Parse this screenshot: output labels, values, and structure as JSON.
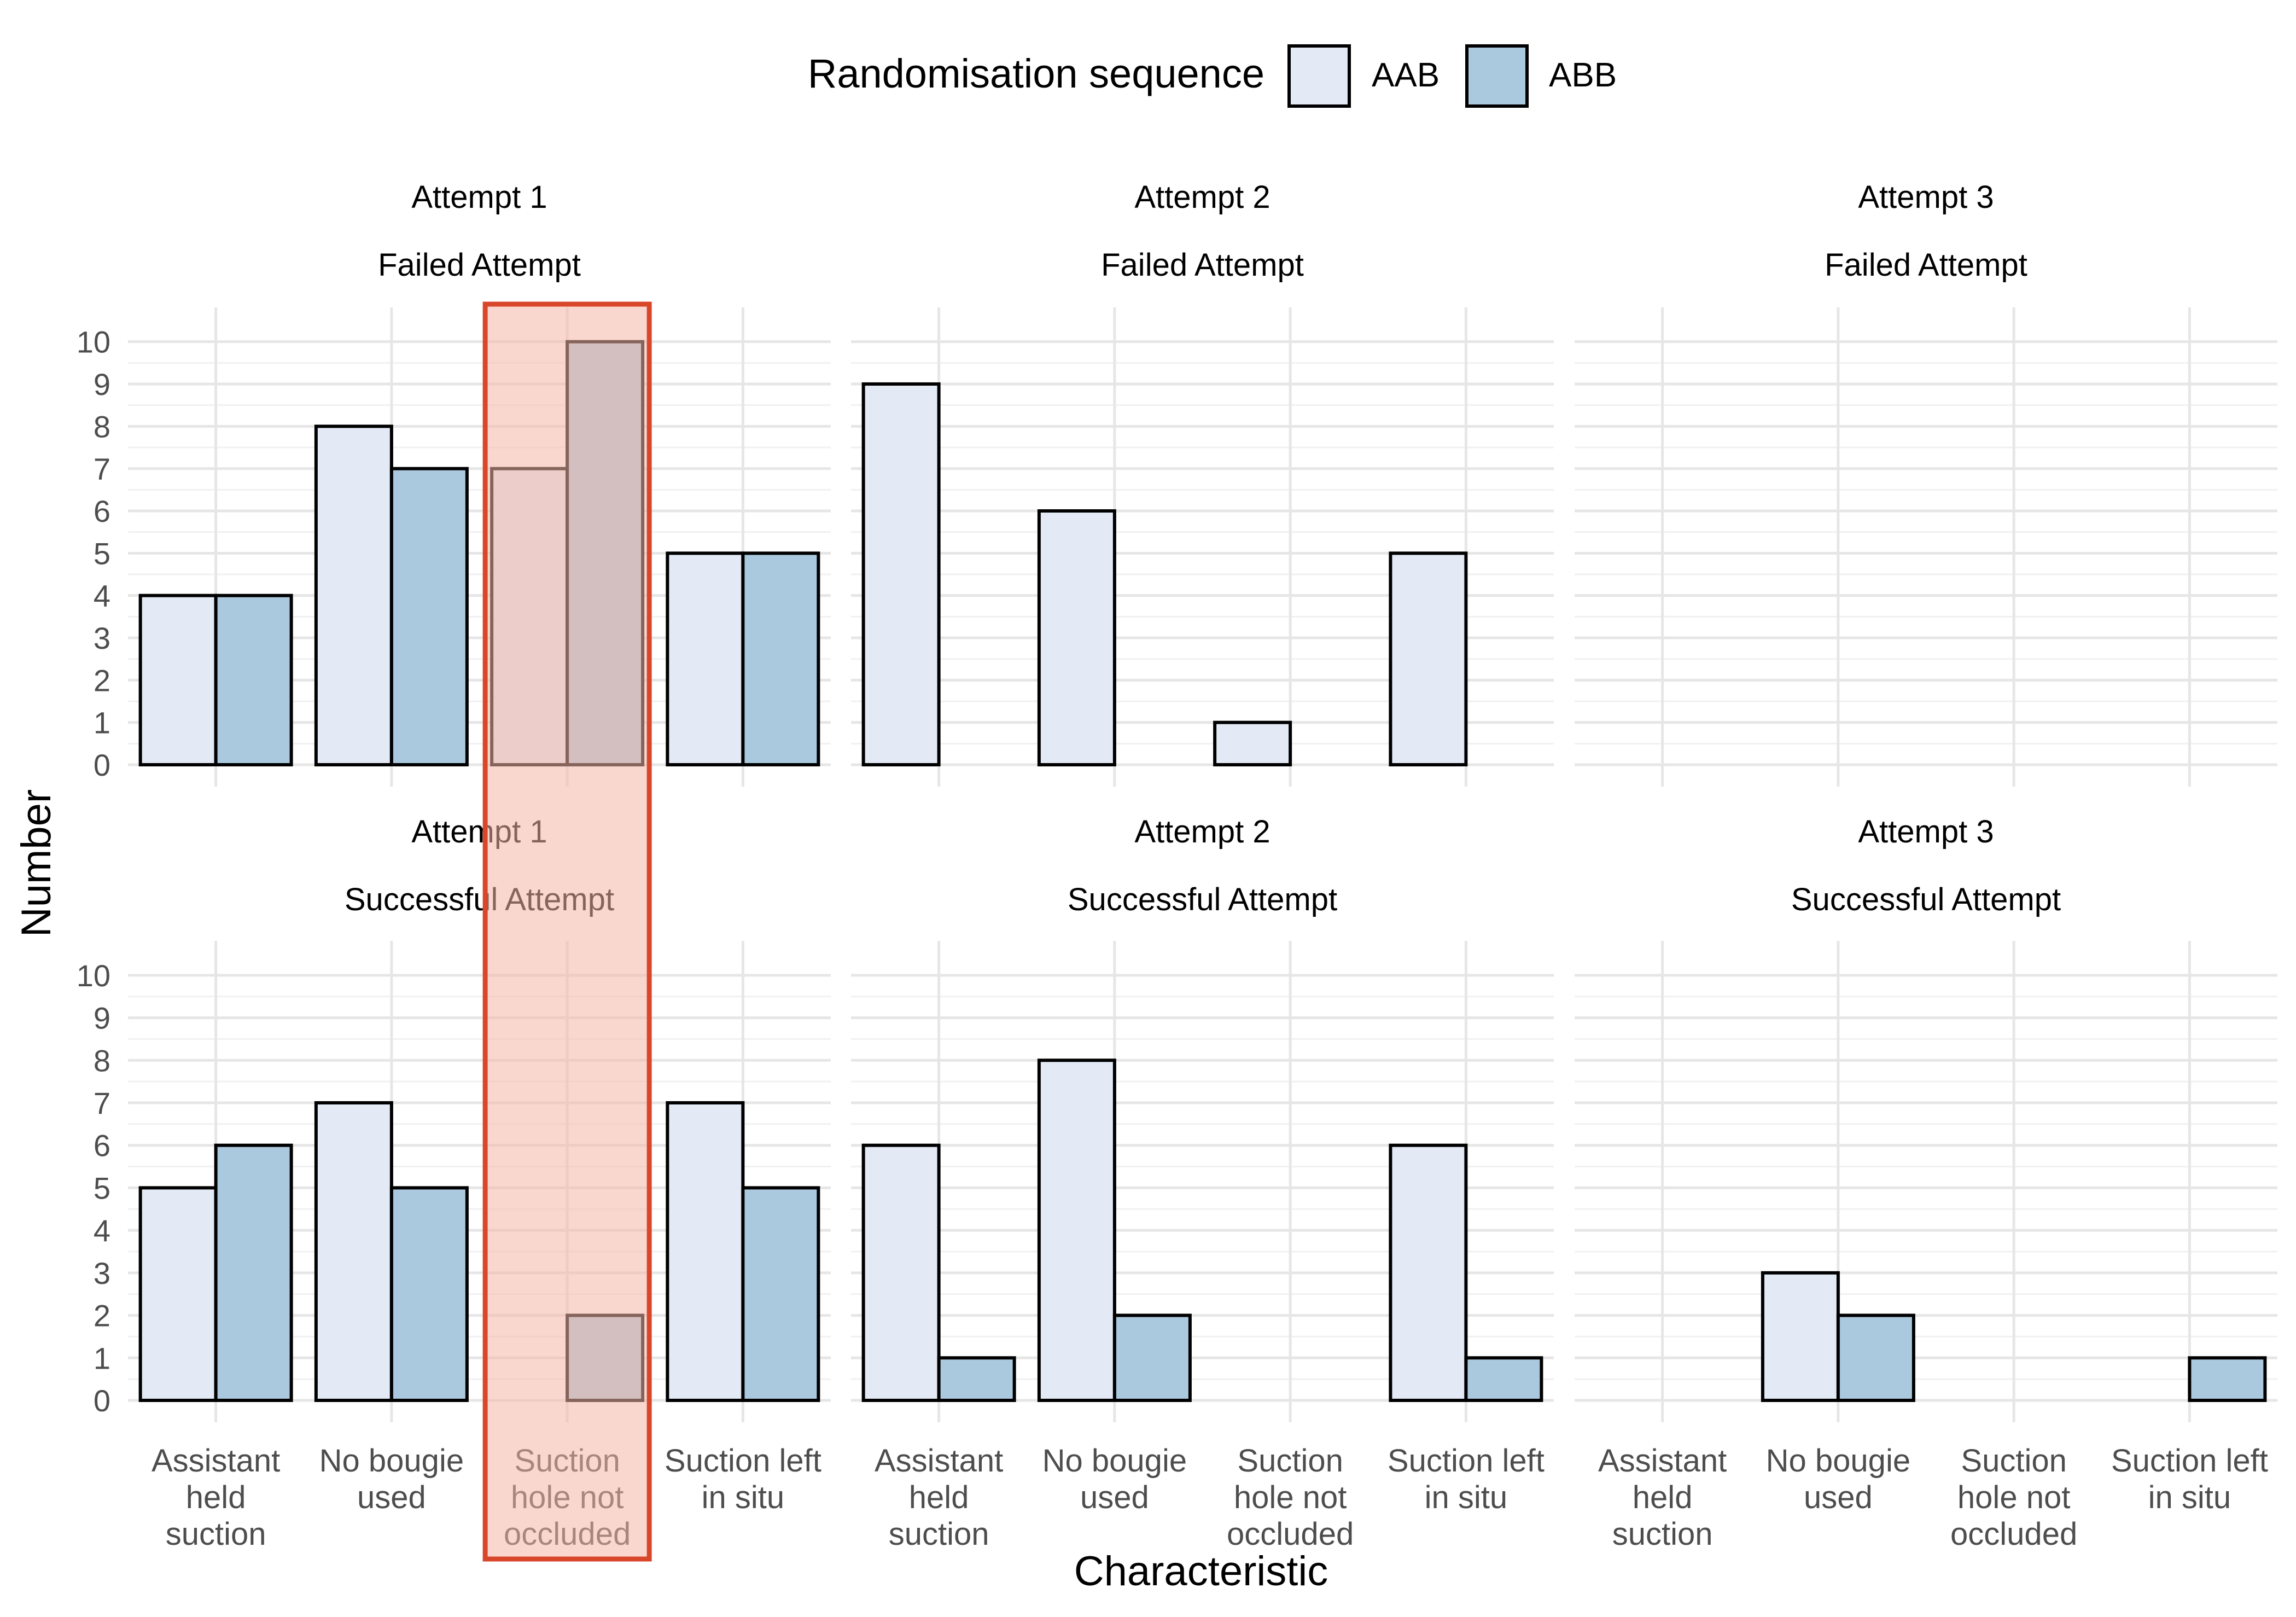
{
  "legend": {
    "title": "Randomisation sequence",
    "entries": [
      {
        "label": "AAB",
        "color": "#e3e9f5"
      },
      {
        "label": "ABB",
        "color": "#abc9de"
      }
    ]
  },
  "axes": {
    "xlabel": "Characteristic",
    "ylabel": "Number"
  },
  "highlight": {
    "category_index": 2,
    "fill": "#f4b6a6",
    "stroke": "#d9472b"
  },
  "chart_data": {
    "type": "bar",
    "ylim": [
      0,
      10.5
    ],
    "yticks": [
      "0",
      "1",
      "2",
      "3",
      "4",
      "5",
      "6",
      "7",
      "8",
      "9",
      "10"
    ],
    "categories": [
      [
        "Assistant",
        "held",
        "suction"
      ],
      [
        "No bougie",
        "used"
      ],
      [
        "Suction",
        "hole not",
        "occluded"
      ],
      [
        "Suction left",
        "in situ"
      ]
    ],
    "series_names": [
      "AAB",
      "ABB"
    ],
    "grid": true,
    "legend_position": "top",
    "panels": [
      {
        "attempt": "Attempt  1",
        "outcome": "Failed Attempt",
        "series": [
          [
            4,
            8,
            7,
            5
          ],
          [
            4,
            7,
            10,
            5
          ]
        ]
      },
      {
        "attempt": "Attempt  2",
        "outcome": "Failed Attempt",
        "series": [
          [
            9,
            6,
            1,
            5
          ],
          [
            0,
            0,
            0,
            0
          ]
        ]
      },
      {
        "attempt": "Attempt  3",
        "outcome": "Failed Attempt",
        "series": [
          [
            0,
            0,
            0,
            0
          ],
          [
            0,
            0,
            0,
            0
          ]
        ]
      },
      {
        "attempt": "Attempt  1",
        "outcome": "Successful Attempt",
        "series": [
          [
            5,
            7,
            0,
            7
          ],
          [
            6,
            5,
            2,
            5
          ]
        ]
      },
      {
        "attempt": "Attempt  2",
        "outcome": "Successful Attempt",
        "series": [
          [
            6,
            8,
            0,
            6
          ],
          [
            1,
            2,
            0,
            1
          ]
        ]
      },
      {
        "attempt": "Attempt  3",
        "outcome": "Successful Attempt",
        "series": [
          [
            0,
            3,
            0,
            0
          ],
          [
            0,
            2,
            0,
            1
          ]
        ]
      }
    ]
  }
}
